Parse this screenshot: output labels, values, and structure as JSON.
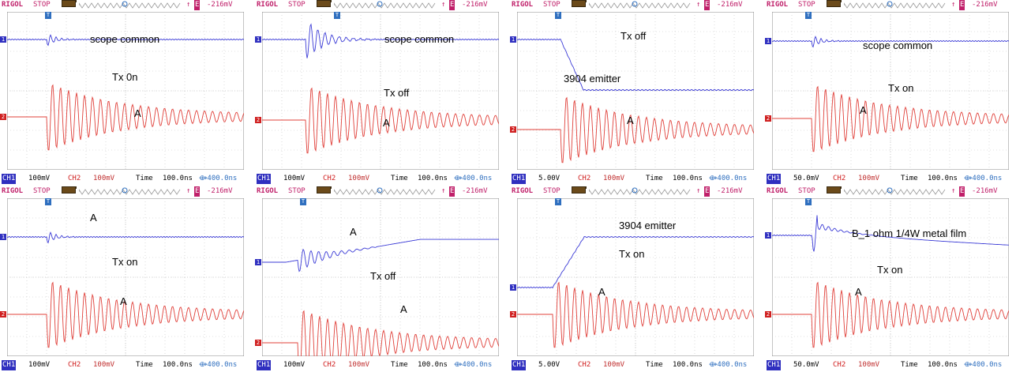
{
  "top": {
    "brand": "RIGOL",
    "state": "STOP",
    "edge": "↑",
    "source": "E",
    "level": "-216mV"
  },
  "panels": [
    {
      "ch1": "100mV",
      "ch2": "100mV",
      "time_label": "Time",
      "time": "100.0ns",
      "offset": "⟴400.0ns",
      "labels": [
        "scope common",
        "Tx 0n",
        "A"
      ]
    },
    {
      "ch1": "100mV",
      "ch2": "100mV",
      "time_label": "Time",
      "time": "100.0ns",
      "offset": "⟴400.0ns",
      "labels": [
        "scope common",
        "Tx off",
        "A"
      ]
    },
    {
      "ch1": "5.00V",
      "ch2": "100mV",
      "time_label": "Time",
      "time": "100.0ns",
      "offset": "⟴400.0ns",
      "labels": [
        "Tx off",
        "3904 emitter",
        "A"
      ]
    },
    {
      "ch1": "50.0mV",
      "ch2": "100mV",
      "time_label": "Time",
      "time": "100.0ns",
      "offset": "⟴400.0ns",
      "labels": [
        "scope common",
        "Tx on",
        "A"
      ]
    },
    {
      "ch1": "100mV",
      "ch2": "100mV",
      "time_label": "Time",
      "time": "100.0ns",
      "offset": "⟴400.0ns",
      "labels": [
        "A",
        "Tx on",
        "A"
      ]
    },
    {
      "ch1": "100mV",
      "ch2": "100mV",
      "time_label": "Time",
      "time": "100.0ns",
      "offset": "⟴400.0ns",
      "labels": [
        "A",
        "Tx off",
        "A"
      ]
    },
    {
      "ch1": "5.00V",
      "ch2": "100mV",
      "time_label": "Time",
      "time": "100.0ns",
      "offset": "⟴400.0ns",
      "labels": [
        "3904 emitter",
        "Tx on",
        "A"
      ]
    },
    {
      "ch1": "50.0mV",
      "ch2": "100mV",
      "time_label": "Time",
      "time": "100.0ns",
      "offset": "⟴400.0ns",
      "labels": [
        "B_1 ohm 1/4W metal film",
        "Tx on",
        "A"
      ]
    }
  ],
  "colors": {
    "ch1": "#3b3bd6",
    "ch2": "#e0403a",
    "brand": "#c0206a",
    "grid": "#9a9a9a"
  }
}
